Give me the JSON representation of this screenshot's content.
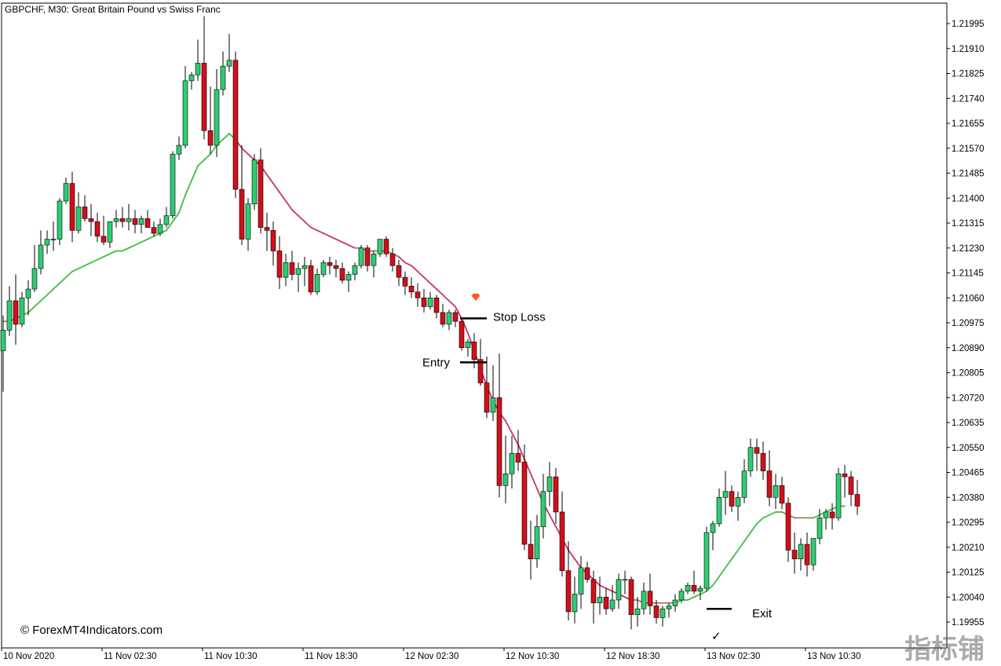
{
  "chart_data": {
    "type": "candlestick",
    "title": "GBPCHF, M30:  Great Britain Pound vs Swiss Franc",
    "ylim": [
      1.1991,
      1.2204
    ],
    "y_ticks": [
      "1.21995",
      "1.21910",
      "1.21825",
      "1.21740",
      "1.21655",
      "1.21570",
      "1.21485",
      "1.21400",
      "1.21315",
      "1.21230",
      "1.21145",
      "1.21060",
      "1.20975",
      "1.20890",
      "1.20805",
      "1.20720",
      "1.20635",
      "1.20550",
      "1.20465",
      "1.20380",
      "1.20295",
      "1.20210",
      "1.20125",
      "1.20040",
      "1.19955"
    ],
    "x_ticks": [
      "10 Nov 2020",
      "11 Nov 02:30",
      "11 Nov 10:30",
      "11 Nov 18:30",
      "12 Nov 02:30",
      "12 Nov 10:30",
      "12 Nov 18:30",
      "13 Nov 02:30",
      "13 Nov 10:30"
    ],
    "colors": {
      "bull": "#2ecc71",
      "bear": "#d0101a",
      "wick": "#000000",
      "ma_up": "#3fbf3f",
      "ma_transition": "#a07a60",
      "ma_down": "#cc3366",
      "signal_arrow": "#ff5a1f"
    },
    "candles": [
      [
        1.2088,
        1.21,
        1.2074,
        1.2095
      ],
      [
        1.2095,
        1.211,
        1.2093,
        1.2105
      ],
      [
        1.2105,
        1.2114,
        1.209,
        1.2097
      ],
      [
        1.2097,
        1.2108,
        1.2096,
        1.2106
      ],
      [
        1.2106,
        1.2112,
        1.21,
        1.2109
      ],
      [
        1.2109,
        1.2124,
        1.2108,
        1.2116
      ],
      [
        1.2116,
        1.2129,
        1.2114,
        1.2124
      ],
      [
        1.2124,
        1.2129,
        1.2121,
        1.2126
      ],
      [
        1.2126,
        1.2132,
        1.2122,
        1.2126
      ],
      [
        1.2126,
        1.214,
        1.2124,
        1.2139
      ],
      [
        1.2139,
        1.2147,
        1.2138,
        1.2145
      ],
      [
        1.2145,
        1.2149,
        1.2125,
        1.2129
      ],
      [
        1.2129,
        1.2142,
        1.2128,
        1.2137
      ],
      [
        1.2137,
        1.2141,
        1.2132,
        1.2133
      ],
      [
        1.2133,
        1.2138,
        1.2127,
        1.2132
      ],
      [
        1.2132,
        1.2135,
        1.2125,
        1.2127
      ],
      [
        1.2127,
        1.2134,
        1.2124,
        1.2125
      ],
      [
        1.2125,
        1.2131,
        1.2123,
        1.2132
      ],
      [
        1.2132,
        1.2136,
        1.213,
        1.2133
      ],
      [
        1.2133,
        1.2137,
        1.213,
        1.2132
      ],
      [
        1.2132,
        1.2138,
        1.2129,
        1.2133
      ],
      [
        1.2133,
        1.2136,
        1.2128,
        1.2131
      ],
      [
        1.2131,
        1.2134,
        1.2128,
        1.2133
      ],
      [
        1.2133,
        1.2136,
        1.213,
        1.213
      ],
      [
        1.213,
        1.2132,
        1.2127,
        1.2128
      ],
      [
        1.2128,
        1.2133,
        1.2127,
        1.2131
      ],
      [
        1.2131,
        1.2137,
        1.213,
        1.2134
      ],
      [
        1.2134,
        1.2156,
        1.2133,
        1.2155
      ],
      [
        1.2155,
        1.2161,
        1.2153,
        1.2158
      ],
      [
        1.2158,
        1.2185,
        1.2157,
        1.218
      ],
      [
        1.218,
        1.2183,
        1.2177,
        1.2182
      ],
      [
        1.2182,
        1.2194,
        1.218,
        1.2186
      ],
      [
        1.2186,
        1.2202,
        1.216,
        1.2163
      ],
      [
        1.2163,
        1.2178,
        1.2155,
        1.2158
      ],
      [
        1.2158,
        1.2184,
        1.2154,
        1.2177
      ],
      [
        1.2177,
        1.219,
        1.2175,
        1.2185
      ],
      [
        1.2185,
        1.2196,
        1.2183,
        1.2187
      ],
      [
        1.2187,
        1.219,
        1.214,
        1.2143
      ],
      [
        1.2143,
        1.2158,
        1.2124,
        1.2126
      ],
      [
        1.2126,
        1.214,
        1.2122,
        1.2138
      ],
      [
        1.2138,
        1.2155,
        1.2136,
        1.2153
      ],
      [
        1.2153,
        1.2157,
        1.2128,
        1.213
      ],
      [
        1.213,
        1.2135,
        1.2122,
        1.2129
      ],
      [
        1.2129,
        1.2132,
        1.2117,
        1.2122
      ],
      [
        1.2122,
        1.2127,
        1.2109,
        1.2113
      ],
      [
        1.2113,
        1.2121,
        1.211,
        1.2118
      ],
      [
        1.2118,
        1.2122,
        1.2112,
        1.2114
      ],
      [
        1.2114,
        1.2118,
        1.2108,
        1.2116
      ],
      [
        1.2116,
        1.212,
        1.211,
        1.2117
      ],
      [
        1.2117,
        1.2119,
        1.2107,
        1.2108
      ],
      [
        1.2108,
        1.2116,
        1.2107,
        1.2114
      ],
      [
        1.2114,
        1.2119,
        1.2113,
        1.2118
      ],
      [
        1.2118,
        1.212,
        1.2114,
        1.2117
      ],
      [
        1.2117,
        1.2119,
        1.2113,
        1.2116
      ],
      [
        1.2116,
        1.2118,
        1.2111,
        1.2112
      ],
      [
        1.2112,
        1.2115,
        1.2108,
        1.2114
      ],
      [
        1.2114,
        1.2118,
        1.2112,
        1.2117
      ],
      [
        1.2117,
        1.2124,
        1.2116,
        1.2123
      ],
      [
        1.2123,
        1.2124,
        1.2115,
        1.2117
      ],
      [
        1.2117,
        1.2122,
        1.2113,
        1.2121
      ],
      [
        1.2121,
        1.2126,
        1.212,
        1.2126
      ],
      [
        1.2126,
        1.2127,
        1.212,
        1.2121
      ],
      [
        1.2121,
        1.2123,
        1.2115,
        1.2117
      ],
      [
        1.2117,
        1.2119,
        1.211,
        1.2113
      ],
      [
        1.2113,
        1.2115,
        1.2107,
        1.211
      ],
      [
        1.211,
        1.2113,
        1.2106,
        1.2108
      ],
      [
        1.2108,
        1.2111,
        1.2103,
        1.2106
      ],
      [
        1.2106,
        1.2109,
        1.2101,
        1.2103
      ],
      [
        1.2103,
        1.2108,
        1.2102,
        1.2106
      ],
      [
        1.2106,
        1.2107,
        1.2099,
        1.2101
      ],
      [
        1.2101,
        1.2104,
        1.2096,
        1.2097
      ],
      [
        1.2097,
        1.2102,
        1.2095,
        1.2101
      ],
      [
        1.2101,
        1.2102,
        1.2096,
        1.2098
      ],
      [
        1.2098,
        1.2099,
        1.2088,
        1.2089
      ],
      [
        1.2089,
        1.2092,
        1.2086,
        1.2091
      ],
      [
        1.2091,
        1.2094,
        1.2082,
        1.2085
      ],
      [
        1.2085,
        1.2092,
        1.2076,
        1.2077
      ],
      [
        1.2077,
        1.2086,
        1.2065,
        1.2067
      ],
      [
        1.2067,
        1.2083,
        1.2064,
        1.2072
      ],
      [
        1.2072,
        1.2087,
        1.2038,
        1.2042
      ],
      [
        1.2042,
        1.2059,
        1.2036,
        1.2046
      ],
      [
        1.2046,
        1.2059,
        1.2041,
        1.2053
      ],
      [
        1.2053,
        1.2061,
        1.2047,
        1.205
      ],
      [
        1.205,
        1.2056,
        1.202,
        1.2022
      ],
      [
        1.2022,
        1.203,
        1.201,
        1.2017
      ],
      [
        1.2017,
        1.2032,
        1.2014,
        1.2028
      ],
      [
        1.2028,
        1.2046,
        1.2024,
        1.204
      ],
      [
        1.204,
        1.205,
        1.2035,
        1.2045
      ],
      [
        1.2045,
        1.2048,
        1.2029,
        1.2033
      ],
      [
        1.2033,
        1.204,
        1.2011,
        1.2013
      ],
      [
        1.2013,
        1.2023,
        1.1996,
        1.1999
      ],
      [
        1.1999,
        1.2011,
        1.1995,
        1.2005
      ],
      [
        1.2005,
        1.2018,
        1.2,
        1.2014
      ],
      [
        1.2014,
        1.2016,
        1.2009,
        1.201
      ],
      [
        1.201,
        1.2013,
        1.1995,
        1.2002
      ],
      [
        1.2002,
        1.2011,
        1.1998,
        1.2004
      ],
      [
        1.2004,
        1.2007,
        1.1998,
        1.2
      ],
      [
        1.2,
        1.2008,
        1.1999,
        1.2003
      ],
      [
        1.2003,
        1.2012,
        1.2,
        1.201
      ],
      [
        1.201,
        1.2013,
        1.2005,
        1.201
      ],
      [
        1.201,
        1.2011,
        1.1993,
        1.1998
      ],
      [
        1.1998,
        1.2004,
        1.1994,
        1.2
      ],
      [
        1.2,
        1.2009,
        1.1998,
        1.2006
      ],
      [
        1.2006,
        1.2012,
        1.1998,
        1.2001
      ],
      [
        1.2001,
        1.2003,
        1.1995,
        1.1997
      ],
      [
        1.1997,
        1.2001,
        1.1994,
        1.2
      ],
      [
        1.2,
        1.2002,
        1.1997,
        1.2001
      ],
      [
        1.2001,
        1.2005,
        1.1999,
        1.2003
      ],
      [
        1.2003,
        1.2007,
        1.2002,
        1.2006
      ],
      [
        1.2006,
        1.2009,
        1.2005,
        1.2008
      ],
      [
        1.2008,
        1.2013,
        1.2005,
        1.2006
      ],
      [
        1.2006,
        1.2008,
        1.2003,
        1.2007
      ],
      [
        1.2007,
        1.2028,
        1.2006,
        1.2026
      ],
      [
        1.2026,
        1.203,
        1.202,
        1.2029
      ],
      [
        1.2029,
        1.2041,
        1.2028,
        1.2038
      ],
      [
        1.2038,
        1.2047,
        1.2032,
        1.204
      ],
      [
        1.204,
        1.2042,
        1.2033,
        1.2035
      ],
      [
        1.2035,
        1.204,
        1.203,
        1.2038
      ],
      [
        1.2038,
        1.2051,
        1.2036,
        1.2047
      ],
      [
        1.2047,
        1.2058,
        1.2045,
        1.2055
      ],
      [
        1.2055,
        1.2058,
        1.2047,
        1.2053
      ],
      [
        1.2053,
        1.2057,
        1.2044,
        1.2047
      ],
      [
        1.2047,
        1.2054,
        1.2035,
        1.2038
      ],
      [
        1.2038,
        1.2046,
        1.2034,
        1.2042
      ],
      [
        1.2042,
        1.2045,
        1.2034,
        1.2036
      ],
      [
        1.2036,
        1.2038,
        1.2016,
        1.202
      ],
      [
        1.202,
        1.2026,
        1.2012,
        1.2017
      ],
      [
        1.2017,
        1.2024,
        1.2013,
        1.2022
      ],
      [
        1.2022,
        1.2026,
        1.2011,
        1.2015
      ],
      [
        1.2015,
        1.2024,
        1.2013,
        1.2024
      ],
      [
        1.2024,
        1.2034,
        1.2022,
        1.2031
      ],
      [
        1.2031,
        1.2034,
        1.2027,
        1.2033
      ],
      [
        1.2033,
        1.2036,
        1.2027,
        1.2031
      ],
      [
        1.2031,
        1.2048,
        1.203,
        1.2046
      ],
      [
        1.2046,
        1.2049,
        1.2038,
        1.2045
      ],
      [
        1.2045,
        1.2047,
        1.2035,
        1.2039
      ],
      [
        1.2039,
        1.2044,
        1.2032,
        1.2035
      ]
    ],
    "moving_average": [
      1.2098,
      1.2098,
      1.2099,
      1.21,
      1.2101,
      1.2103,
      1.2105,
      1.2107,
      1.2109,
      1.2111,
      1.2113,
      1.2115,
      1.2116,
      1.2117,
      1.2118,
      1.2119,
      1.212,
      1.2121,
      1.2122,
      1.2122,
      1.2123,
      1.2124,
      1.2125,
      1.2126,
      1.2127,
      1.2128,
      1.2129,
      1.2132,
      1.2135,
      1.2141,
      1.2146,
      1.2151,
      1.2153,
      1.2155,
      1.2158,
      1.216,
      1.2162,
      1.216,
      1.2157,
      1.2155,
      1.2153,
      1.2151,
      1.2148,
      1.2145,
      1.2142,
      1.2139,
      1.2136,
      1.2134,
      1.2132,
      1.213,
      1.2129,
      1.2128,
      1.2127,
      1.2126,
      1.2125,
      1.2124,
      1.2123,
      1.2123,
      1.2122,
      1.2122,
      1.2122,
      1.2122,
      1.2121,
      1.212,
      1.2118,
      1.2117,
      1.2115,
      1.2113,
      1.2111,
      1.2109,
      1.2107,
      1.2105,
      1.2103,
      1.2099,
      1.2094,
      1.2088,
      1.2082,
      1.2076,
      1.2071,
      1.2067,
      1.2064,
      1.206,
      1.2056,
      1.2051,
      1.2046,
      1.2041,
      1.2036,
      1.2032,
      1.2028,
      1.2024,
      1.202,
      1.2017,
      1.2014,
      1.2012,
      1.201,
      1.2008,
      1.2007,
      1.2006,
      1.2005,
      1.2004,
      1.2003,
      1.2003,
      1.2002,
      1.2002,
      1.2002,
      1.2002,
      1.2002,
      1.2002,
      1.2003,
      1.2003,
      1.2004,
      1.2005,
      1.2006,
      1.2008,
      1.2011,
      1.2014,
      1.2017,
      1.202,
      1.2023,
      1.2026,
      1.2029,
      1.2031,
      1.2032,
      1.2033,
      1.2033,
      1.2032,
      1.2031,
      1.2031,
      1.2031,
      1.2031,
      1.2032,
      1.2033,
      1.2034,
      1.2035,
      1.2035
    ],
    "annotations": {
      "stop_loss": {
        "label": "Stop Loss",
        "price": 1.2099,
        "candle": 73
      },
      "entry": {
        "label": "Entry",
        "price": 1.2084,
        "candle": 75
      },
      "exit": {
        "label": "Exit",
        "price": 1.2,
        "candle": 114
      },
      "signal_arrow_candle": 75,
      "check_mark": "✓"
    }
  },
  "watermark": "© ForexMT4Indicators.com",
  "corner_logo": "指标铺"
}
